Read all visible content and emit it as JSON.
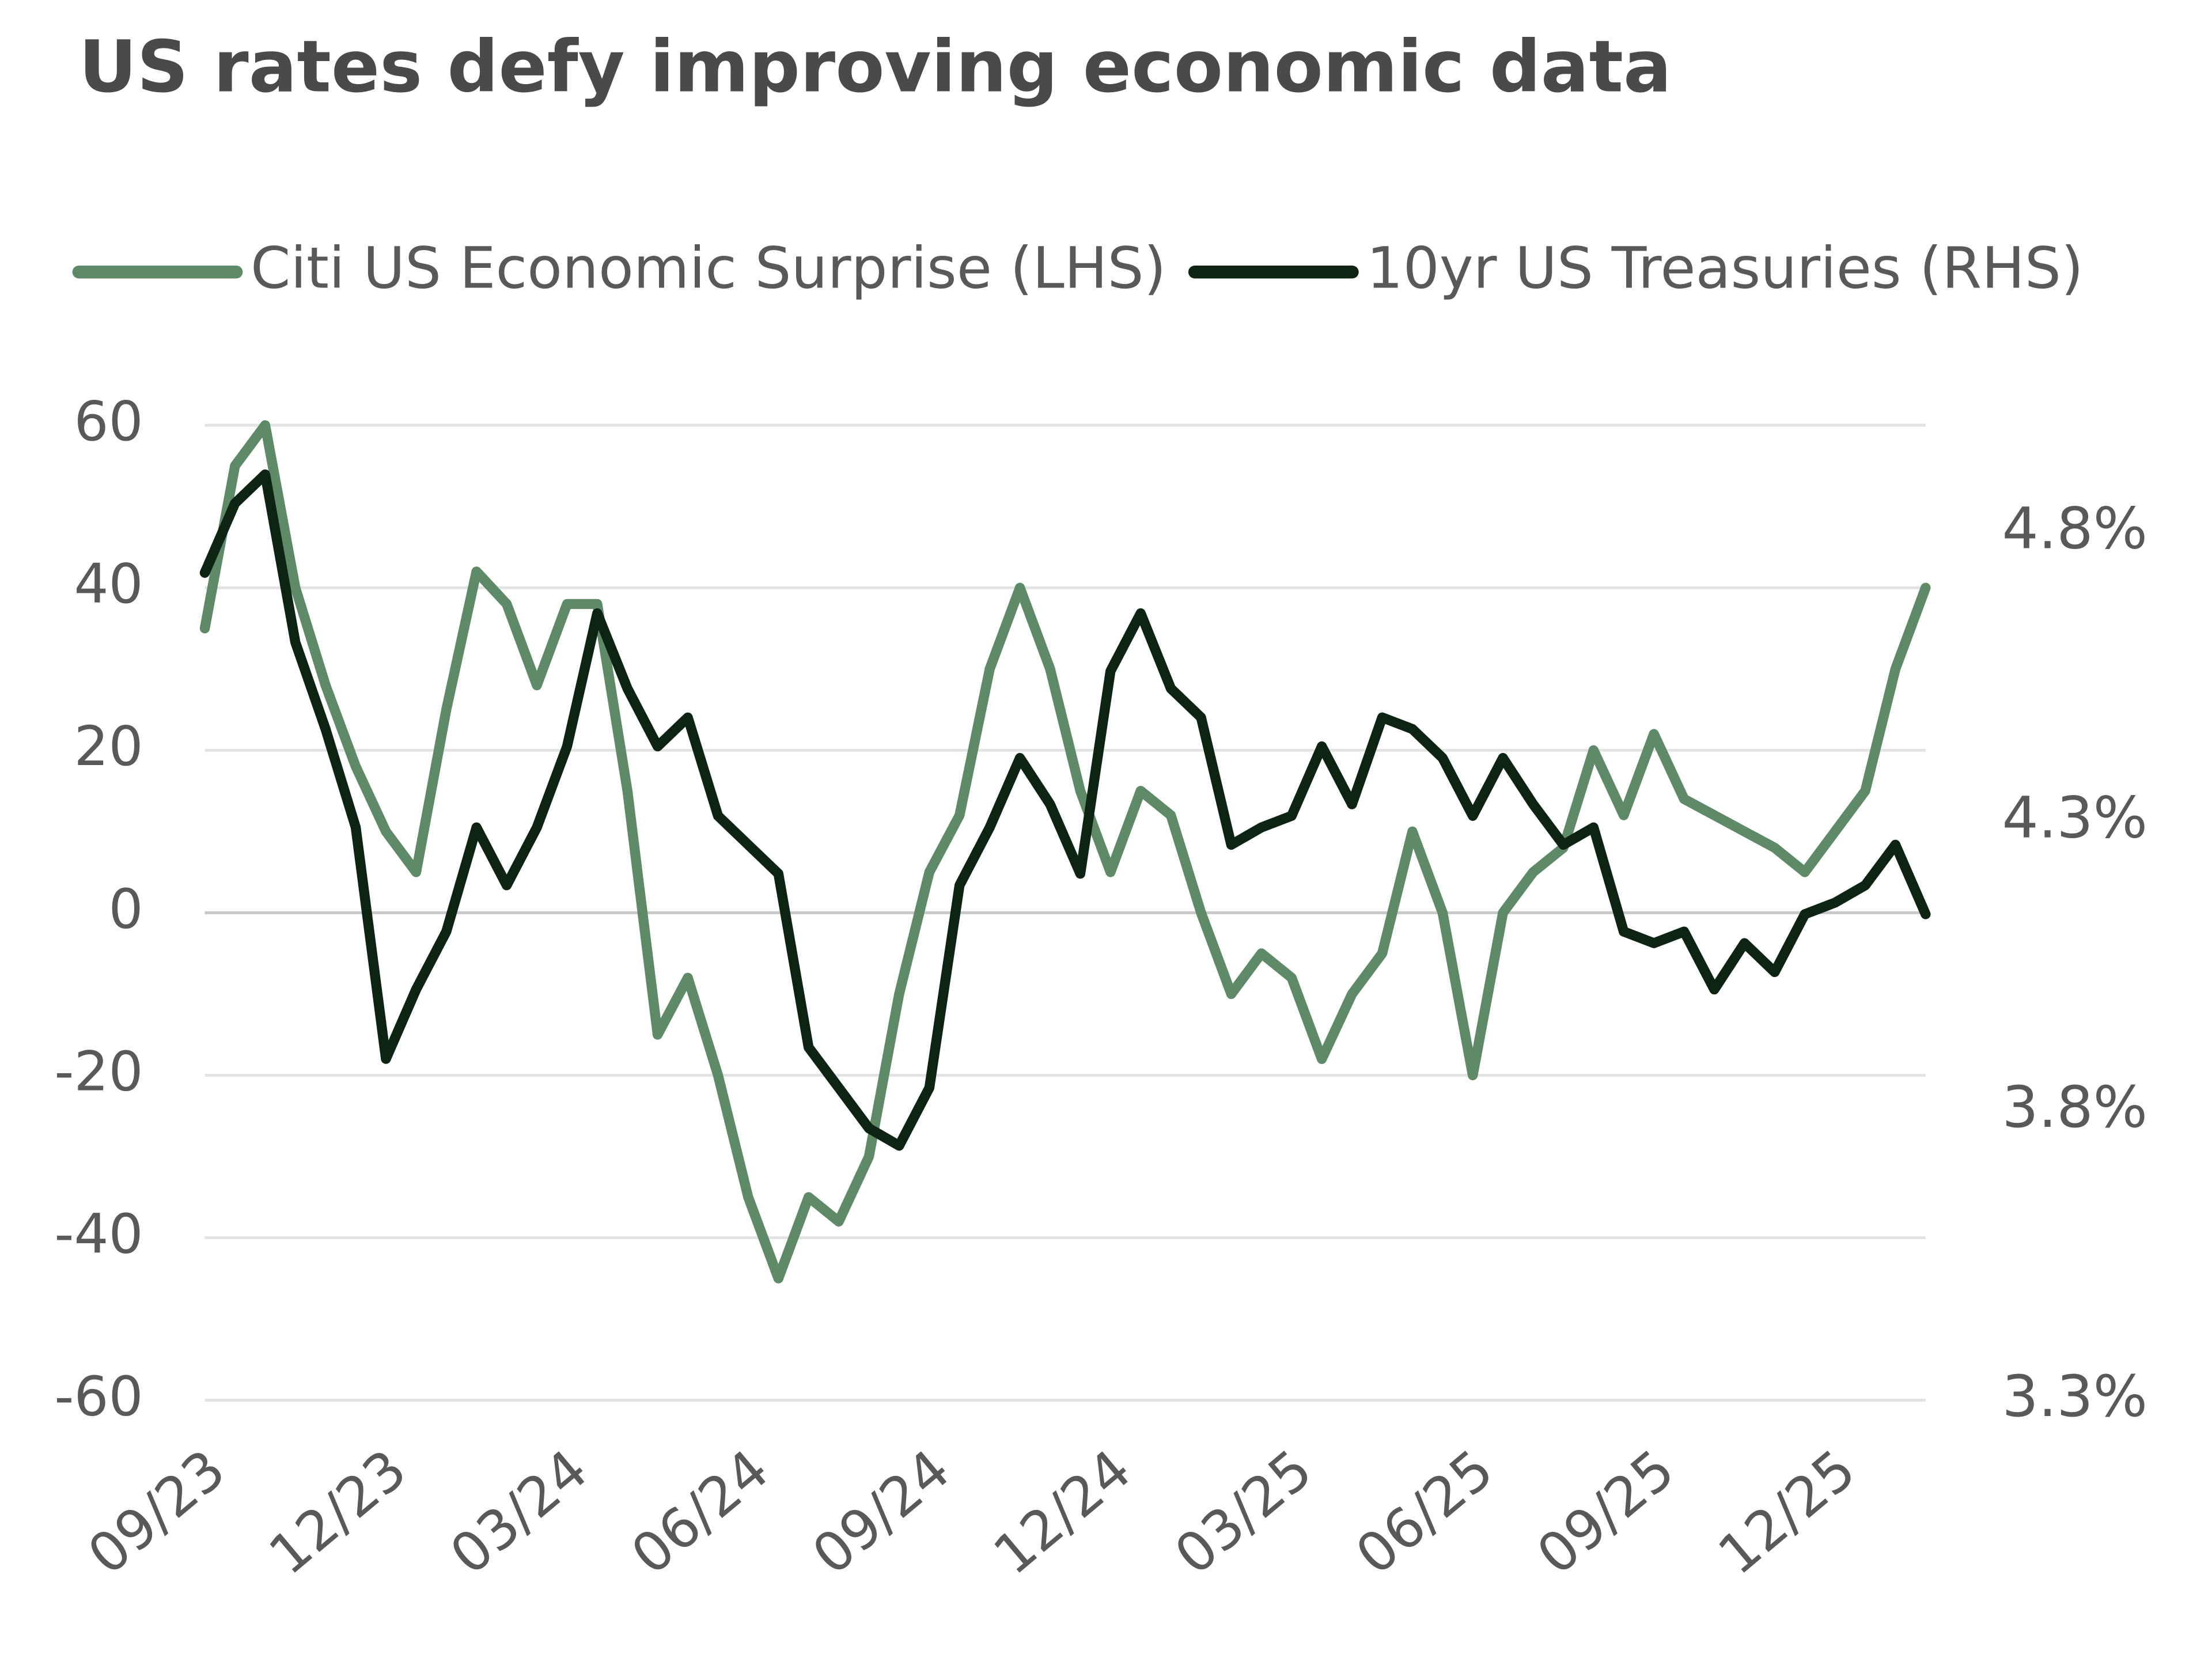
{
  "chart_data": {
    "type": "line",
    "title": "US rates defy improving economic data",
    "legend": "top-left",
    "grid": true,
    "categories": [
      "09/23",
      null,
      null,
      null,
      null,
      null,
      "12/23",
      null,
      null,
      null,
      null,
      null,
      "03/24",
      null,
      null,
      null,
      null,
      null,
      "06/24",
      null,
      null,
      null,
      null,
      null,
      "09/24",
      null,
      null,
      null,
      null,
      null,
      "12/24",
      null,
      null,
      null,
      null,
      null,
      "03/25",
      null,
      null,
      null,
      null,
      null,
      "06/25",
      null,
      null,
      null,
      null,
      null,
      "09/25",
      null,
      null,
      null,
      null,
      null,
      "12/25",
      null,
      null,
      null
    ],
    "ylim": [
      -60,
      60
    ],
    "yticks": [
      -60,
      -40,
      -20,
      0,
      20,
      40,
      60
    ],
    "y2lim": [
      3.3,
      4.985
    ],
    "y2ticks": [
      {
        "value": 3.3,
        "label": "3.3%"
      },
      {
        "value": 3.8,
        "label": "3.8%"
      },
      {
        "value": 4.3,
        "label": "4.3%"
      },
      {
        "value": 4.8,
        "label": "4.8%"
      }
    ],
    "series": [
      {
        "name": "Citi US Economic Surprise (LHS)",
        "color": "#5e8a68",
        "values": [
          35,
          55,
          60,
          40,
          28,
          18,
          10,
          5,
          25,
          42,
          38,
          28,
          38,
          38,
          15,
          -15,
          -8,
          -20,
          -35,
          -45,
          -35,
          -38,
          -30,
          -10,
          5,
          12,
          30,
          40,
          30,
          15,
          5,
          15,
          12,
          0,
          -10,
          -5,
          -8,
          -18,
          -10,
          -5,
          10,
          0,
          -20,
          0,
          5,
          8,
          20,
          12,
          22,
          14,
          12,
          10,
          8,
          5,
          10,
          15,
          30,
          40
        ]
      },
      {
        "name": "10yr US Treasuries (RHS)",
        "color": "#0d2412",
        "axis": "y2",
        "values": [
          4.73,
          4.85,
          4.9,
          4.61,
          4.46,
          4.29,
          3.89,
          4.01,
          4.11,
          4.29,
          4.19,
          4.29,
          4.43,
          4.66,
          4.53,
          4.43,
          4.48,
          4.31,
          4.26,
          4.21,
          3.91,
          3.84,
          3.77,
          3.74,
          3.84,
          4.19,
          4.29,
          4.41,
          4.33,
          4.21,
          4.56,
          4.66,
          4.53,
          4.48,
          4.26,
          4.29,
          4.31,
          4.43,
          4.33,
          4.48,
          4.46,
          4.41,
          4.31,
          4.41,
          4.33,
          4.26,
          4.29,
          4.11,
          4.09,
          4.11,
          4.01,
          4.09,
          4.04,
          4.14,
          4.16,
          4.19,
          4.26,
          4.14
        ]
      }
    ]
  }
}
